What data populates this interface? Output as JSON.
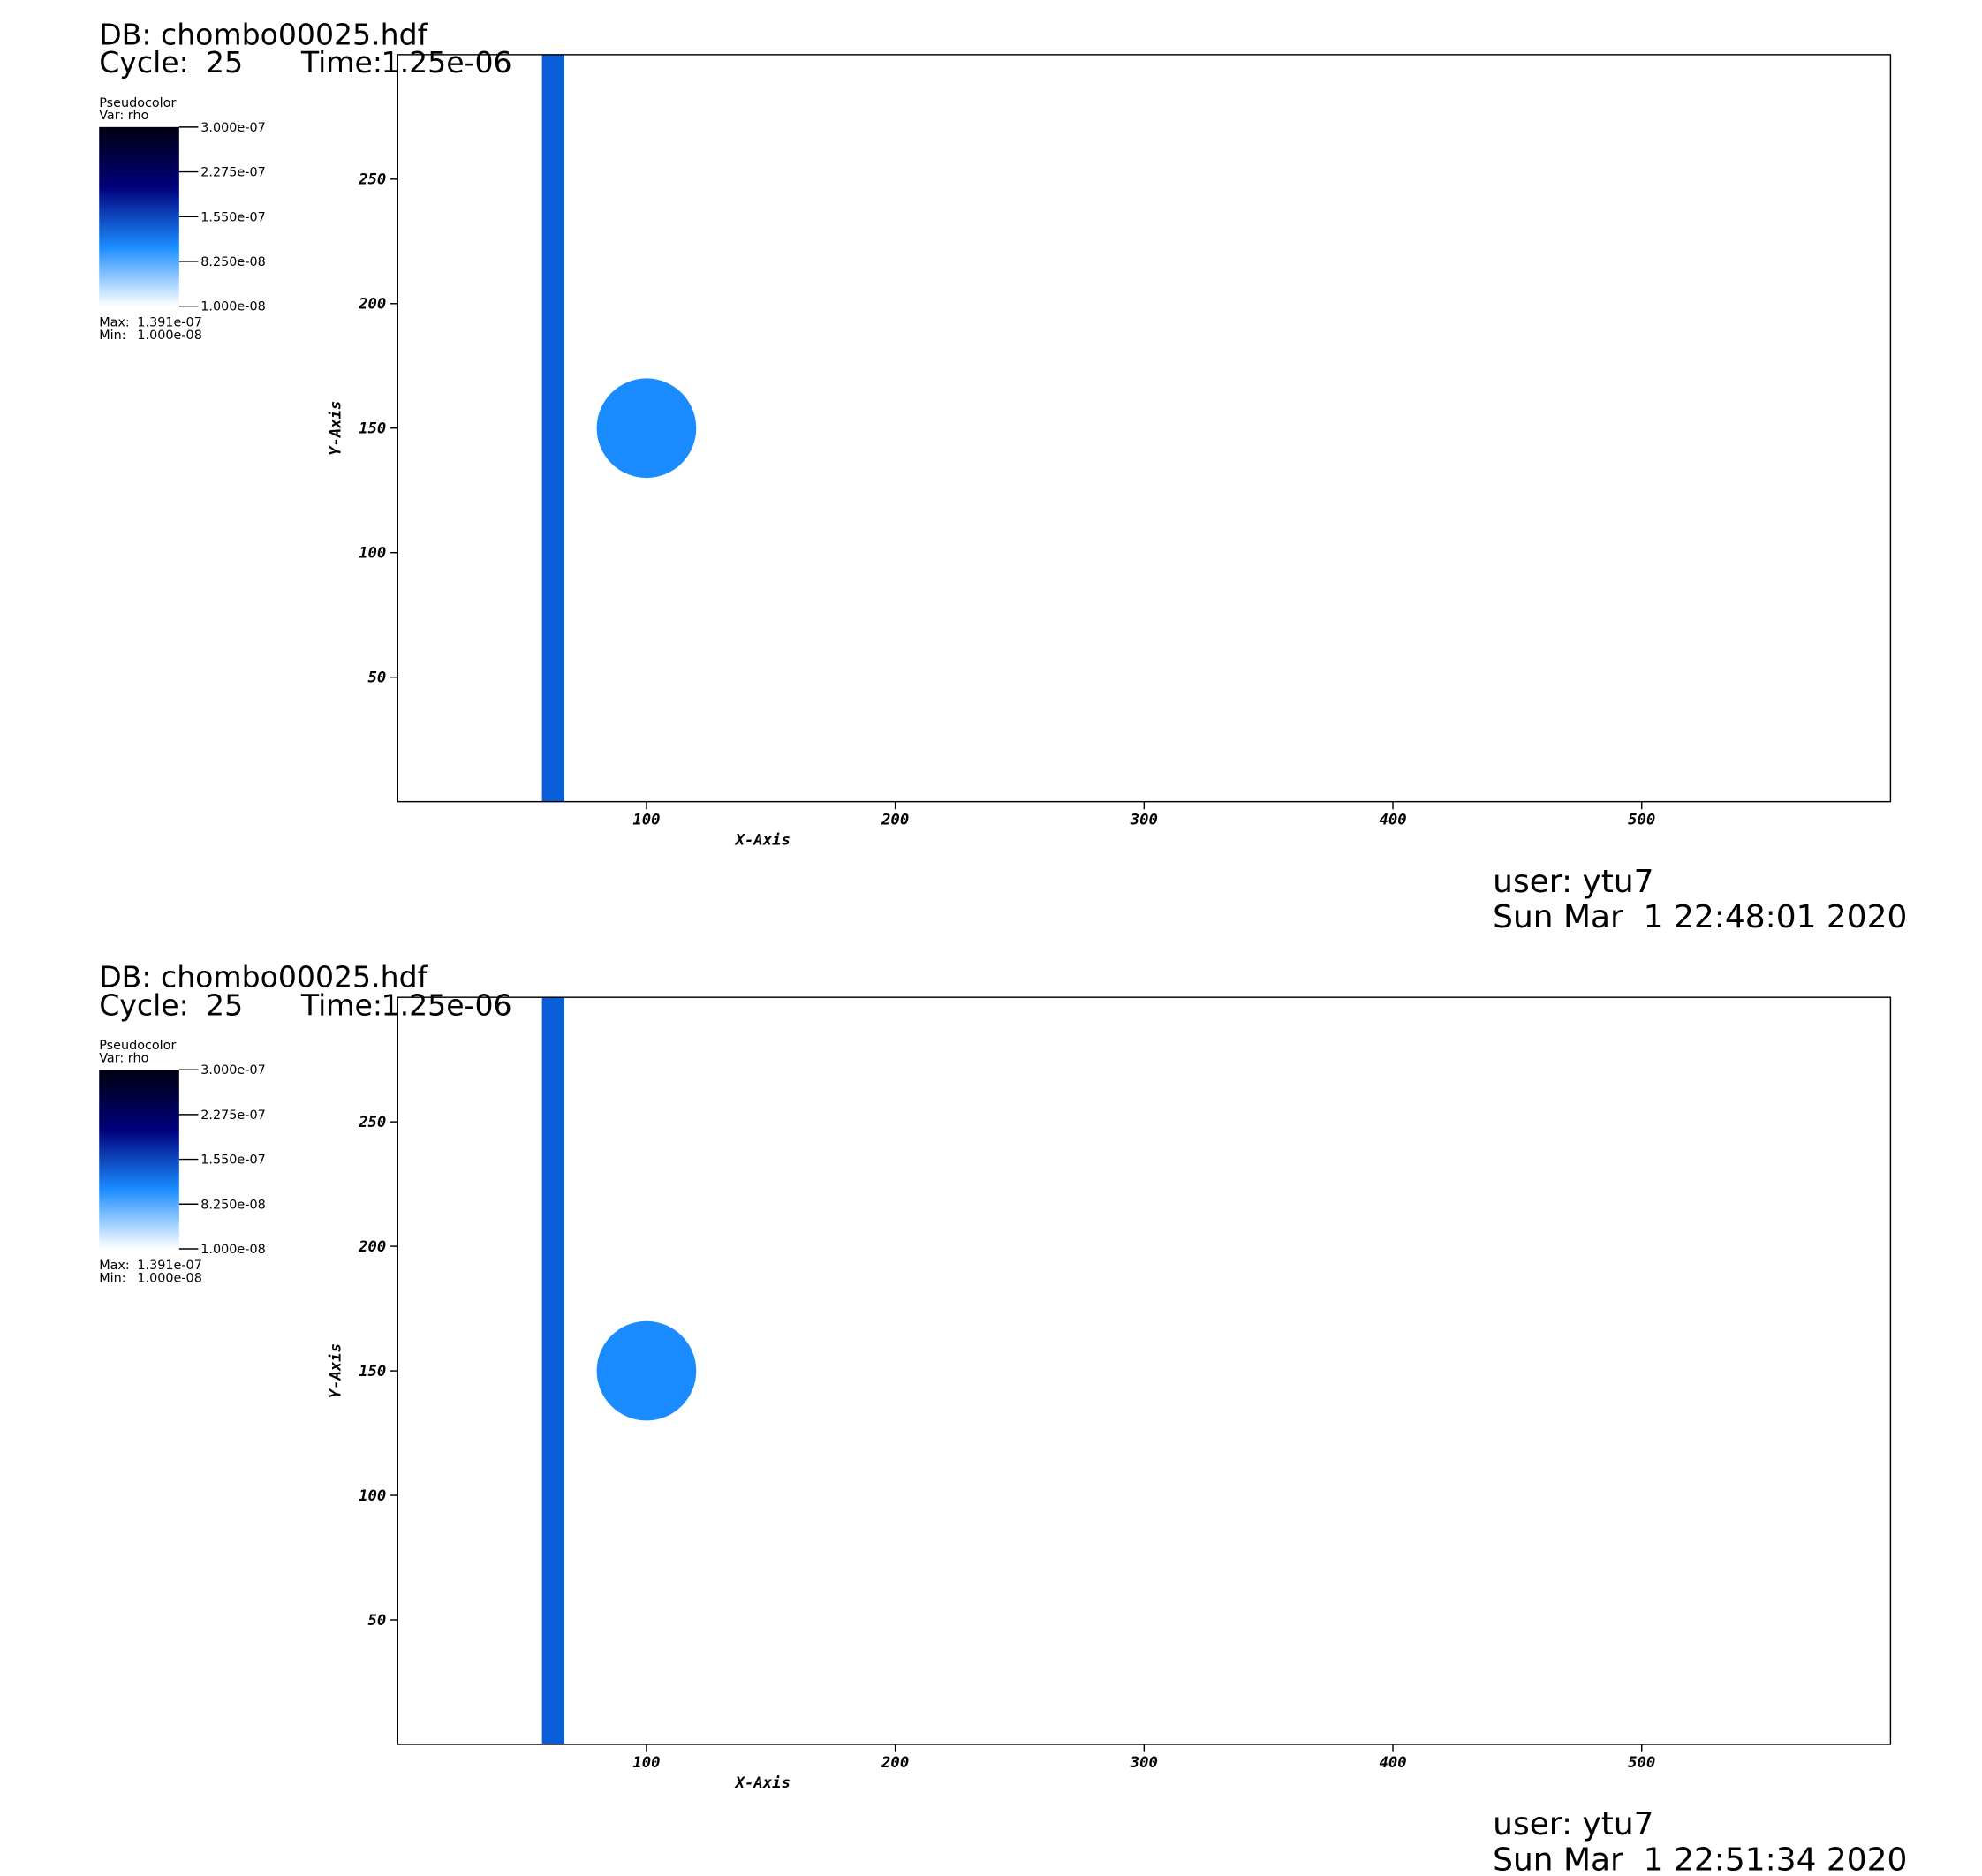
{
  "chart_data": [
    {
      "type": "pseudocolor",
      "db": "DB: chombo00025.hdf",
      "cycle_label": "Cycle:",
      "cycle": 25,
      "time_label": "Time:",
      "time": {
        "value": 1.25e-06,
        "label": "1.25e-06"
      },
      "legend_title": "Pseudocolor",
      "legend_var": "Var: rho",
      "clim": [
        1e-08,
        3e-07
      ],
      "cticks": [
        {
          "value": 3e-07,
          "label": "3.000e-07"
        },
        {
          "value": 2.275e-07,
          "label": "2.275e-07"
        },
        {
          "value": 1.55e-07,
          "label": "1.550e-07"
        },
        {
          "value": 8.25e-08,
          "label": "8.250e-08"
        },
        {
          "value": 1e-08,
          "label": "1.000e-08"
        }
      ],
      "max_label": "Max:",
      "max": {
        "value": 1.391e-07,
        "label": "1.391e-07"
      },
      "min_label": "Min:",
      "min": {
        "value": 1e-08,
        "label": "1.000e-08"
      },
      "colormap": [
        "#ffffff",
        "#1a8cff",
        "#00007a",
        "#000010"
      ],
      "x_label": "X-Axis",
      "y_label": "Y-Axis",
      "xlim": [
        0,
        600
      ],
      "ylim": [
        0,
        300
      ],
      "xticks": [
        100,
        200,
        300,
        400,
        500
      ],
      "yticks": [
        50,
        100,
        150,
        200,
        250
      ],
      "bands": [
        {
          "xlim": [
            58,
            67
          ],
          "color": "#0a5fd8"
        }
      ],
      "circles": [
        {
          "center": [
            100,
            150
          ],
          "r": 20,
          "color": "#1a8cff"
        }
      ],
      "user": "user: ytu7",
      "date": "Sun Mar  1 22:48:01 2020"
    },
    {
      "type": "pseudocolor",
      "db": "DB: chombo00025.hdf",
      "cycle_label": "Cycle:",
      "cycle": 25,
      "time_label": "Time:",
      "time": {
        "value": 1.25e-06,
        "label": "1.25e-06"
      },
      "legend_title": "Pseudocolor",
      "legend_var": "Var: rho",
      "clim": [
        1e-08,
        3e-07
      ],
      "cticks": [
        {
          "value": 3e-07,
          "label": "3.000e-07"
        },
        {
          "value": 2.275e-07,
          "label": "2.275e-07"
        },
        {
          "value": 1.55e-07,
          "label": "1.550e-07"
        },
        {
          "value": 8.25e-08,
          "label": "8.250e-08"
        },
        {
          "value": 1e-08,
          "label": "1.000e-08"
        }
      ],
      "max_label": "Max:",
      "max": {
        "value": 1.391e-07,
        "label": "1.391e-07"
      },
      "min_label": "Min:",
      "min": {
        "value": 1e-08,
        "label": "1.000e-08"
      },
      "colormap": [
        "#ffffff",
        "#1a8cff",
        "#00007a",
        "#000010"
      ],
      "x_label": "X-Axis",
      "y_label": "Y-Axis",
      "xlim": [
        0,
        600
      ],
      "ylim": [
        0,
        300
      ],
      "xticks": [
        100,
        200,
        300,
        400,
        500
      ],
      "yticks": [
        50,
        100,
        150,
        200,
        250
      ],
      "bands": [
        {
          "xlim": [
            58,
            67
          ],
          "color": "#0a5fd8"
        }
      ],
      "circles": [
        {
          "center": [
            100,
            150
          ],
          "r": 20,
          "color": "#1a8cff"
        }
      ],
      "user": "user: ytu7",
      "date": "Sun Mar  1 22:51:34 2020"
    }
  ]
}
